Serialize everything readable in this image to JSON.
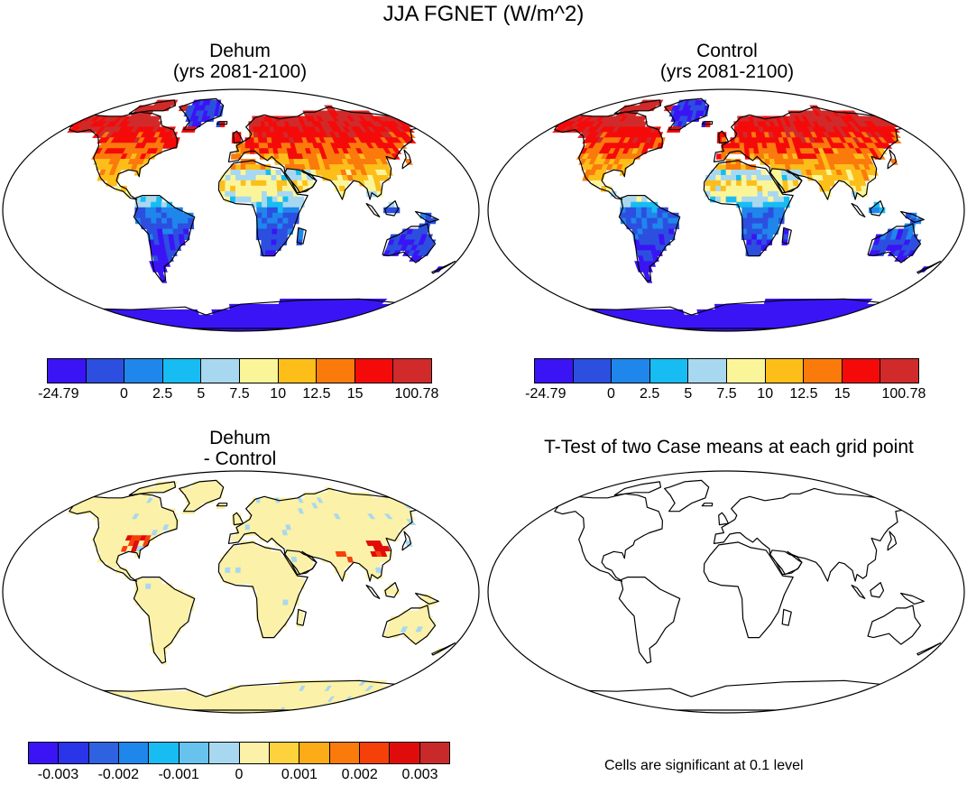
{
  "figure": {
    "title": "JJA FGNET (W/m^2)"
  },
  "panels": [
    {
      "id": "dehum",
      "title_line1": "Dehum",
      "title_line2": "(yrs 2081-2100)"
    },
    {
      "id": "control",
      "title_line1": "Control",
      "title_line2": "(yrs 2081-2100)"
    },
    {
      "id": "difference",
      "title_line1": "Dehum",
      "title_line2": "- Control"
    },
    {
      "id": "ttest",
      "title_line1": "T-Test of two Case means at each grid point"
    }
  ],
  "colorbars": {
    "absolute": {
      "labels": [
        "-24.79",
        "0",
        "2.5",
        "5",
        "7.5",
        "10",
        "12.5",
        "15",
        "100.78"
      ],
      "colors": [
        "#3a14f5",
        "#2c4fe0",
        "#1f86ec",
        "#17bcf2",
        "#a8d8f0",
        "#fbf59a",
        "#fdbe1a",
        "#fb7a0c",
        "#f50a0a",
        "#d12a2a"
      ]
    },
    "difference": {
      "labels": [
        "-0.003",
        "-0.002",
        "-0.001",
        "0",
        "0.001",
        "0.002",
        "0.003"
      ],
      "colors": [
        "#3a14f5",
        "#2a34e8",
        "#2f62e0",
        "#1f86ec",
        "#17bcf2",
        "#67c2ee",
        "#a8d8f0",
        "#fbf1a8",
        "#fdd23c",
        "#fdab16",
        "#fb7a0c",
        "#f5400a",
        "#e00c0c",
        "#c82a2a"
      ]
    }
  },
  "footnote": "Cells are significant at 0.1 level"
}
